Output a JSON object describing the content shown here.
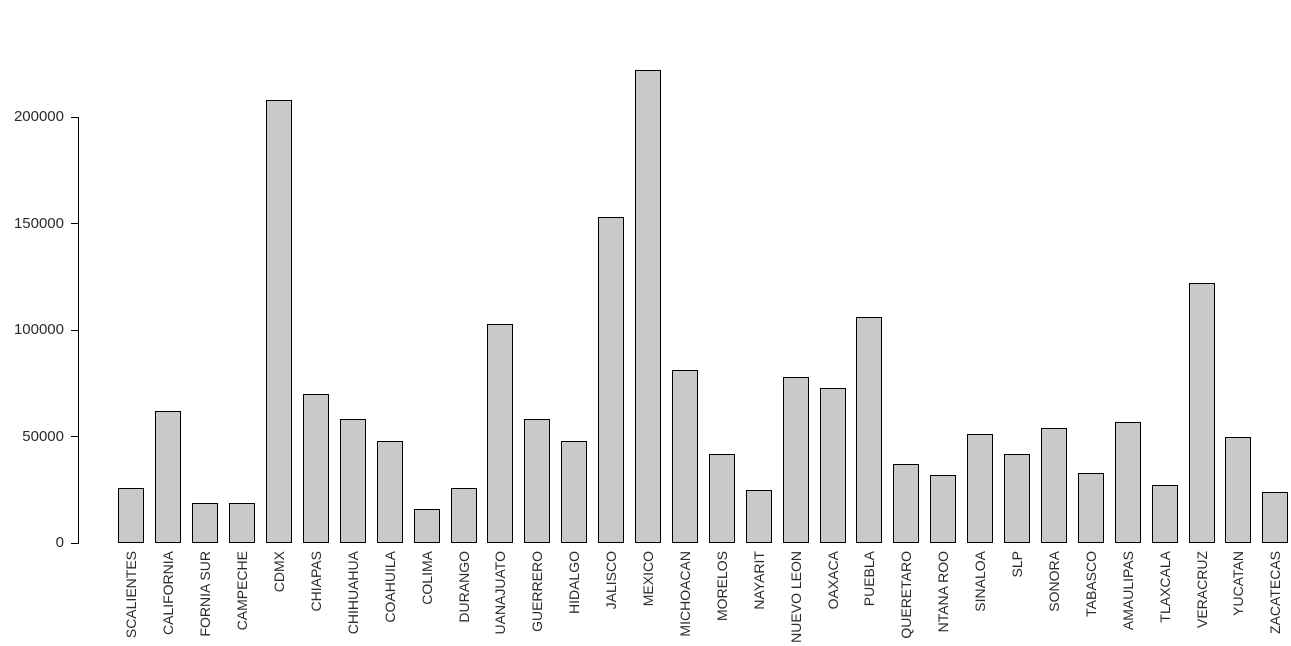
{
  "figure": {
    "background": "#ffffff"
  },
  "chart_data": {
    "type": "bar",
    "title": "",
    "subtitle": "",
    "xlabel": "",
    "ylabel": "",
    "grid": false,
    "legend": false,
    "ylim": [
      0,
      230000
    ],
    "yticks": [
      0,
      50000,
      100000,
      150000,
      200000
    ],
    "bar_fill": "#c9c9c9",
    "bar_border": "#000000",
    "axis_color": "#000000",
    "label_color": "#2b2b2b",
    "categories": [
      "SCALIENTES",
      "CALIFORNIA",
      "FORNIA SUR",
      "CAMPECHE",
      "CDMX",
      "CHIAPAS",
      "CHIHUAHUA",
      "COAHUILA",
      "COLIMA",
      "DURANGO",
      "UANAJUATO",
      "GUERRERO",
      "HIDALGO",
      "JALISCO",
      "MEXICO",
      "MICHOACAN",
      "MORELOS",
      "NAYARIT",
      "NUEVO LEON",
      "OAXACA",
      "PUEBLA",
      "QUERETARO",
      "NTANA ROO",
      "SINALOA",
      "SLP",
      "SONORA",
      "TABASCO",
      "AMAULIPAS",
      "TLAXCALA",
      "VERACRUZ",
      "YUCATAN",
      "ZACATECAS"
    ],
    "values": [
      26000,
      62000,
      19000,
      19000,
      208000,
      70000,
      58000,
      48000,
      16000,
      26000,
      103000,
      58000,
      48000,
      153000,
      222000,
      81000,
      42000,
      25000,
      78000,
      73000,
      106000,
      37000,
      32000,
      51000,
      42000,
      54000,
      33000,
      57000,
      27000,
      122000,
      50000,
      24000
    ]
  }
}
